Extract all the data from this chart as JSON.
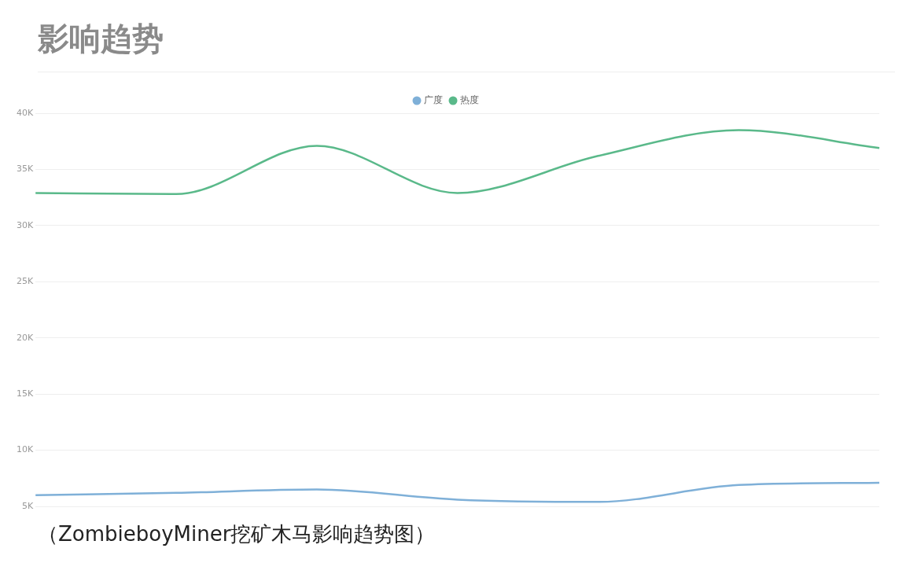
{
  "chart_data": {
    "type": "line",
    "title": "影响趋势",
    "categories": [
      null,
      null,
      null,
      null,
      null,
      null,
      null
    ],
    "series": [
      {
        "name": "广度",
        "color": "#7fb0d8",
        "values": [
          6000,
          6200,
          6500,
          5600,
          5400,
          6900,
          7100
        ]
      },
      {
        "name": "热度",
        "color": "#5ab98a",
        "values": [
          32900,
          32800,
          37100,
          32900,
          36200,
          38500,
          36900
        ]
      }
    ],
    "ylim": [
      5000,
      40000
    ],
    "yticks": [
      {
        "value": 5000,
        "label": "5K"
      },
      {
        "value": 10000,
        "label": "10K"
      },
      {
        "value": 15000,
        "label": "15K"
      },
      {
        "value": 20000,
        "label": "20K"
      },
      {
        "value": 25000,
        "label": "25K"
      },
      {
        "value": 30000,
        "label": "30K"
      },
      {
        "value": 35000,
        "label": "35K"
      },
      {
        "value": 40000,
        "label": "40K"
      }
    ],
    "grid": "y",
    "legend": "top",
    "tick_labels": "y",
    "marker": "none",
    "line_style": "solid",
    "annotations": [
      "（ZombieboyMiner挖矿木马影响趋势图）"
    ]
  }
}
